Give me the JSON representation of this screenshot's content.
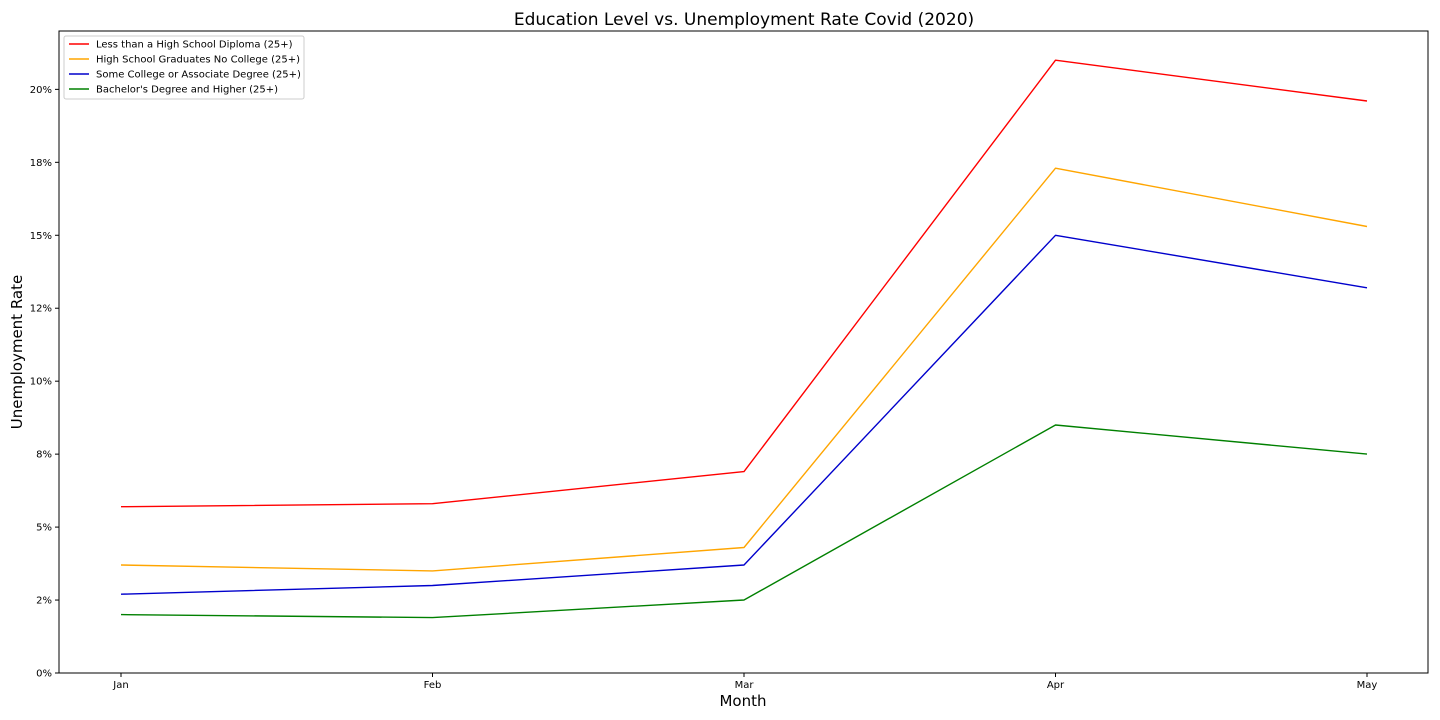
{
  "chart_data": {
    "type": "line",
    "title": "Education Level vs. Unemployment Rate Covid (2020)",
    "xlabel": "Month",
    "ylabel": "Unemployment Rate",
    "categories": [
      "Jan",
      "Feb",
      "Mar",
      "Apr",
      "May"
    ],
    "ylim": [
      0,
      22
    ],
    "yticks": [
      0,
      2.5,
      5,
      7.5,
      10,
      12.5,
      15,
      17.5,
      20
    ],
    "ytick_labels": [
      "0%",
      "2%",
      "5%",
      "8%",
      "10%",
      "12%",
      "15%",
      "18%",
      "20%"
    ],
    "grid": false,
    "legend_position": "top-left",
    "series": [
      {
        "name": "Less than a High School Diploma (25+)",
        "color": "#ff0000",
        "values": [
          5.7,
          5.8,
          6.9,
          21.0,
          19.6
        ]
      },
      {
        "name": "High School Graduates No College (25+)",
        "color": "#ffa500",
        "values": [
          3.7,
          3.5,
          4.3,
          17.3,
          15.3
        ]
      },
      {
        "name": "Some College or Associate Degree (25+)",
        "color": "#0000cc",
        "values": [
          2.7,
          3.0,
          3.7,
          15.0,
          13.2
        ]
      },
      {
        "name": "Bachelor's Degree and Higher (25+)",
        "color": "#008000",
        "values": [
          2.0,
          1.9,
          2.5,
          8.5,
          7.5
        ]
      }
    ]
  }
}
